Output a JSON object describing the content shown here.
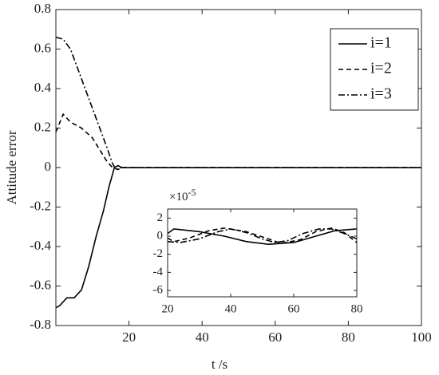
{
  "chart_data": [
    {
      "type": "line",
      "xlabel": "t /s",
      "ylabel": "Attitude error",
      "xlim": [
        0,
        100
      ],
      "ylim": [
        -0.8,
        0.8
      ],
      "xticks": [
        20,
        40,
        60,
        80,
        100
      ],
      "yticks": [
        -0.8,
        -0.6,
        -0.4,
        -0.2,
        0,
        0.2,
        0.4,
        0.6,
        0.8
      ],
      "legend": "top-right",
      "series": [
        {
          "name": "i=1",
          "color": "#000000",
          "dash": "solid",
          "x": [
            0,
            1,
            3,
            5,
            7,
            9,
            11,
            13,
            14.5,
            16,
            17,
            18,
            100
          ],
          "values": [
            -0.71,
            -0.7,
            -0.66,
            -0.66,
            -0.62,
            -0.5,
            -0.35,
            -0.22,
            -0.1,
            0,
            0.01,
            0,
            0
          ]
        },
        {
          "name": "i=2",
          "color": "#000000",
          "dash": "dashed",
          "x": [
            0,
            2,
            4,
            7,
            10,
            12,
            14,
            15.5,
            17,
            18,
            100
          ],
          "values": [
            0.18,
            0.27,
            0.23,
            0.2,
            0.15,
            0.09,
            0.03,
            0,
            -0.01,
            0,
            0
          ]
        },
        {
          "name": "i=3",
          "color": "#000000",
          "dash": "dashdot",
          "x": [
            0,
            2,
            4,
            6,
            8,
            10,
            12,
            14,
            15.5,
            16.5,
            18,
            100
          ],
          "values": [
            0.66,
            0.65,
            0.6,
            0.5,
            0.4,
            0.3,
            0.2,
            0.1,
            0.02,
            -0.01,
            0,
            0
          ]
        }
      ]
    },
    {
      "type": "line",
      "exponent_base": "×10",
      "exponent_power": "-5",
      "xlim": [
        20,
        80
      ],
      "ylim": [
        -6.7,
        3
      ],
      "xticks": [
        20,
        40,
        60,
        80
      ],
      "yticks": [
        -6,
        -4,
        -2,
        0,
        2
      ],
      "series": [
        {
          "color": "#000000",
          "dash": "solid",
          "x": [
            20,
            22,
            30,
            38,
            45,
            52,
            60,
            67,
            73,
            80
          ],
          "values": [
            0.3,
            0.8,
            0.5,
            0,
            -0.6,
            -0.9,
            -0.7,
            0,
            0.6,
            0.8
          ]
        },
        {
          "color": "#000000",
          "dash": "dashed",
          "x": [
            20,
            22,
            27,
            33,
            38,
            45,
            52,
            56,
            62,
            67,
            72,
            76,
            80
          ],
          "values": [
            -0.2,
            -0.6,
            -0.2,
            0.6,
            0.9,
            0.5,
            -0.3,
            -0.8,
            -0.4,
            0.5,
            0.9,
            0.4,
            -0.7
          ]
        },
        {
          "color": "#000000",
          "dash": "dashdot",
          "x": [
            20,
            24,
            30,
            36,
            40,
            45,
            50,
            54,
            58,
            63,
            68,
            72,
            76,
            80
          ],
          "values": [
            -0.6,
            -0.7,
            -0.3,
            0.5,
            0.8,
            0.4,
            -0.3,
            -0.7,
            -0.5,
            0.3,
            0.8,
            0.8,
            0.3,
            -0.3
          ]
        }
      ]
    }
  ]
}
